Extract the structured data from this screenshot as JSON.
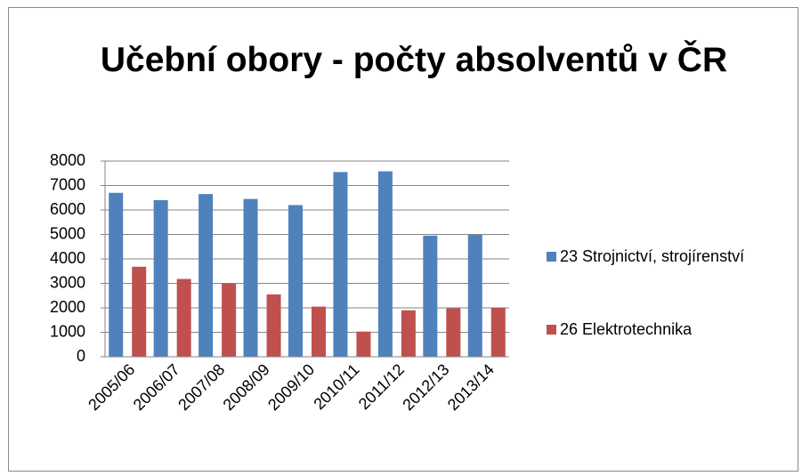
{
  "chart_data": {
    "type": "bar",
    "title": "Učební obory - počty absolventů v ČR",
    "categories": [
      "2005/06",
      "2006/07",
      "2007/08",
      "2008/09",
      "2009/10",
      "2010/11",
      "2011/12",
      "2012/13",
      "2013/14"
    ],
    "series": [
      {
        "name": "23 Strojnictví, strojírenství",
        "color": "#4f81bd",
        "values": [
          6700,
          6400,
          6650,
          6450,
          6200,
          7550,
          7580,
          4950,
          4980
        ]
      },
      {
        "name": "26 Elektrotechnika",
        "color": "#c0504d",
        "values": [
          3680,
          3180,
          3000,
          2550,
          2050,
          1030,
          1900,
          1980,
          2000
        ]
      }
    ],
    "ylim": [
      0,
      8000
    ],
    "yticks": [
      0,
      1000,
      2000,
      3000,
      4000,
      5000,
      6000,
      7000,
      8000
    ],
    "grid": true,
    "legend": "right"
  }
}
